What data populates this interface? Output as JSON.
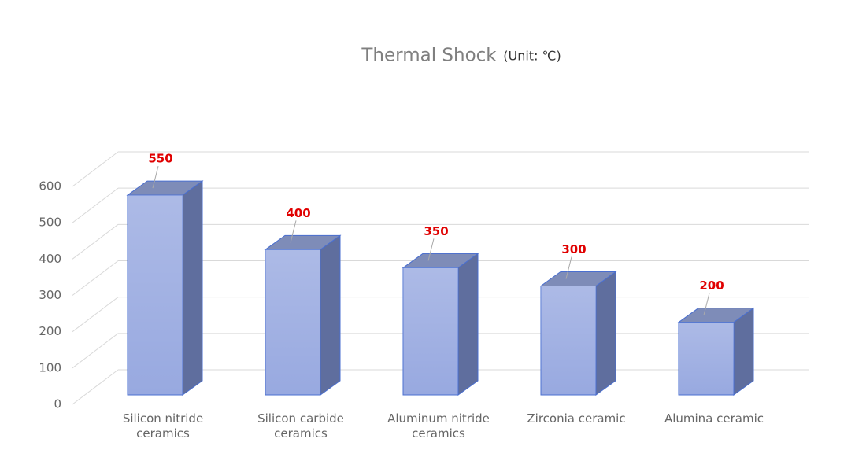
{
  "chart_data": {
    "type": "bar3d",
    "title": "Thermal Shock",
    "subtitle": "(Unit: ℃)",
    "categories": [
      "Silicon nitride ceramics",
      "Silicon carbide ceramics",
      "Aluminum nitride ceramics",
      "Zirconia ceramic",
      "Alumina ceramic"
    ],
    "values": [
      550,
      400,
      350,
      300,
      200
    ],
    "color": "#98a9e0",
    "label_color": "#e00000",
    "ylim": [
      0,
      600
    ],
    "yticks": [
      0,
      100,
      200,
      300,
      400,
      500,
      600
    ],
    "grid": true
  }
}
